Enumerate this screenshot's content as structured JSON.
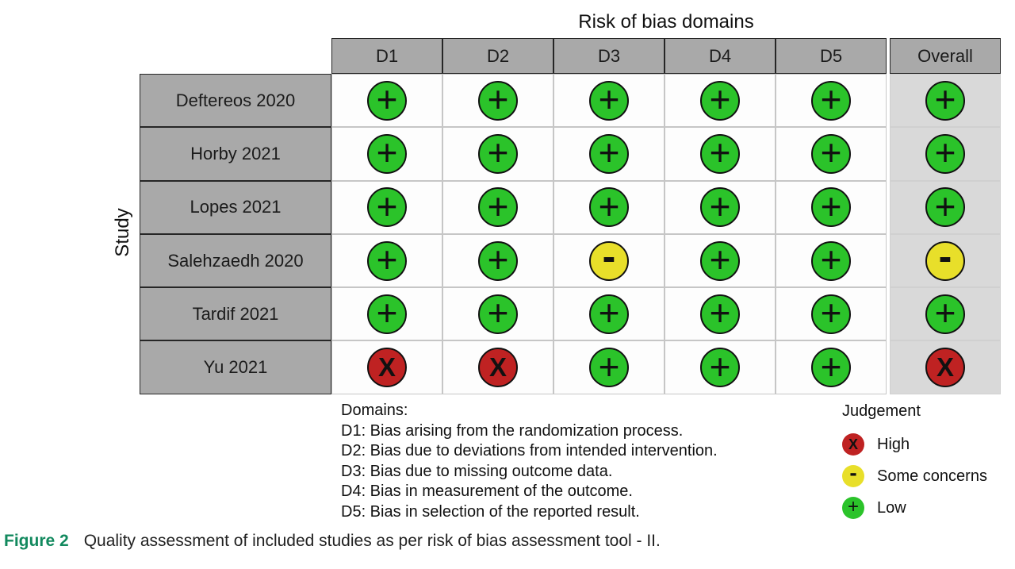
{
  "chart_data": {
    "type": "table",
    "title": "Risk of bias domains",
    "row_axis_label": "Study",
    "columns": [
      "D1",
      "D2",
      "D3",
      "D4",
      "D5",
      "Overall"
    ],
    "rows": [
      {
        "study": "Deftereos 2020",
        "judgements": [
          "low",
          "low",
          "low",
          "low",
          "low",
          "low"
        ]
      },
      {
        "study": "Horby 2021",
        "judgements": [
          "low",
          "low",
          "low",
          "low",
          "low",
          "low"
        ]
      },
      {
        "study": "Lopes 2021",
        "judgements": [
          "low",
          "low",
          "low",
          "low",
          "low",
          "low"
        ]
      },
      {
        "study": "Salehzaedh 2020",
        "judgements": [
          "low",
          "low",
          "some_concerns",
          "low",
          "low",
          "some_concerns"
        ]
      },
      {
        "study": "Tardif  2021",
        "judgements": [
          "low",
          "low",
          "low",
          "low",
          "low",
          "low"
        ]
      },
      {
        "study": "Yu 2021",
        "judgements": [
          "high",
          "high",
          "low",
          "low",
          "low",
          "high"
        ]
      }
    ],
    "judgement_key": {
      "low": {
        "symbol": "+",
        "label": "Low",
        "color": "#2bc32a"
      },
      "some_concerns": {
        "symbol": "-",
        "label": "Some concerns",
        "color": "#e8df2a"
      },
      "high": {
        "symbol": "X",
        "label": "High",
        "color": "#bf2222"
      }
    },
    "legend_position": "bottom-right",
    "grid": "on"
  },
  "domains_note": {
    "heading": "Domains:",
    "items": [
      "D1: Bias arising from the randomization process.",
      "D2: Bias due to deviations from intended intervention.",
      "D3: Bias due to missing outcome data.",
      "D4: Bias in measurement of the outcome.",
      "D5: Bias in selection of the reported result."
    ]
  },
  "legend": {
    "title": "Judgement",
    "items": [
      {
        "judgement": "high",
        "label": "High"
      },
      {
        "judgement": "some_concerns",
        "label": "Some concerns"
      },
      {
        "judgement": "low",
        "label": "Low"
      }
    ]
  },
  "caption": {
    "label": "Figure 2",
    "text": "Quality assessment of included studies as per risk of bias assessment tool - II."
  },
  "colors": {
    "header_bg": "#a9a9a9",
    "overall_column_bg": "#d9d9d9",
    "figure_label": "#12895e"
  }
}
